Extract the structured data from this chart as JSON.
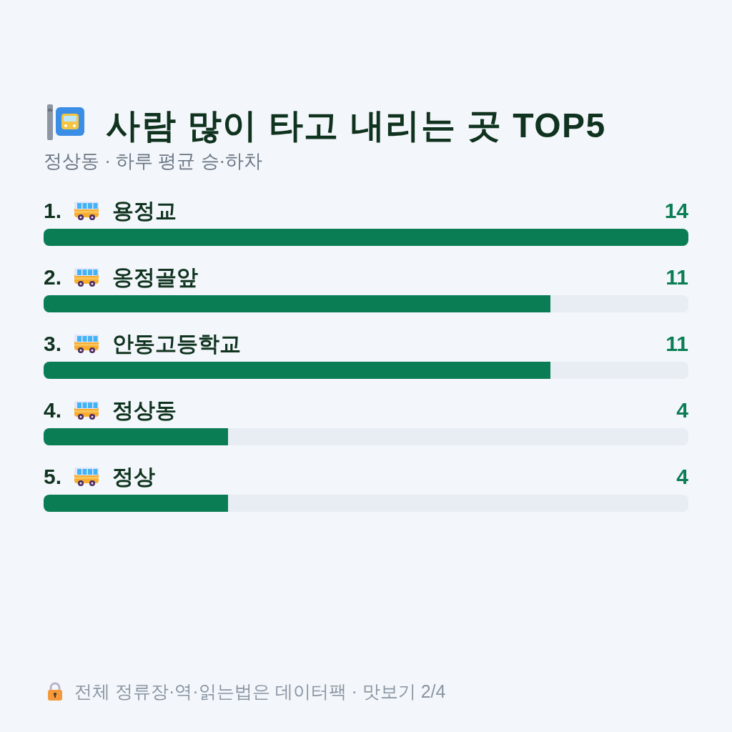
{
  "chart_data": {
    "type": "bar",
    "orientation": "horizontal",
    "title": "사람 많이 타고 내리는 곳 TOP5",
    "subtitle": "정상동 · 하루 평균 승·하차",
    "categories": [
      "1. 용정교",
      "2. 옹정골앞",
      "3. 안동고등학교",
      "4. 정상동",
      "5. 정상"
    ],
    "values": [
      14,
      11,
      11,
      4,
      4
    ],
    "color": "#0b7d55",
    "xlim": [
      0,
      14
    ],
    "data_labels": true,
    "annotations": [
      "전체 정류장·역·읽는법은 데이터팩 · 맛보기 2/4"
    ]
  }
}
